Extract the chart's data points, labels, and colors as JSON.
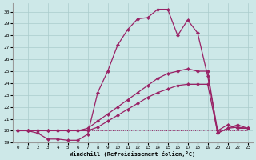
{
  "xlabel": "Windchill (Refroidissement éolien,°C)",
  "bg_color": "#cde8e8",
  "line_color": "#992266",
  "grid_color": "#aacccc",
  "xlim": [
    -0.5,
    23.5
  ],
  "ylim": [
    19.0,
    30.7
  ],
  "yticks": [
    19,
    20,
    21,
    22,
    23,
    24,
    25,
    26,
    27,
    28,
    29,
    30
  ],
  "xticks": [
    0,
    1,
    2,
    3,
    4,
    5,
    6,
    7,
    8,
    9,
    10,
    11,
    12,
    13,
    14,
    15,
    16,
    17,
    18,
    19,
    20,
    21,
    22,
    23
  ],
  "lines": [
    {
      "x": [
        0,
        1,
        2,
        3,
        4,
        5,
        6,
        7,
        8,
        9,
        10,
        11,
        12,
        13,
        14,
        15,
        16,
        17,
        18,
        19,
        20,
        21,
        22,
        23
      ],
      "y": [
        20.0,
        20.0,
        19.8,
        19.3,
        19.3,
        19.2,
        19.2,
        19.7,
        23.2,
        25.0,
        27.2,
        28.5,
        29.4,
        29.5,
        30.2,
        30.2,
        28.0,
        29.3,
        28.2,
        24.6,
        20.0,
        20.5,
        20.2,
        20.2
      ],
      "linestyle": "-",
      "marker": true,
      "linewidth": 0.9
    },
    {
      "x": [
        0,
        1,
        2,
        3,
        4,
        5,
        6,
        7,
        8,
        9,
        10,
        11,
        12,
        13,
        14,
        15,
        16,
        17,
        18,
        19,
        20,
        21,
        22,
        23
      ],
      "y": [
        20.0,
        20.0,
        20.0,
        20.0,
        20.0,
        20.0,
        20.0,
        20.2,
        20.8,
        21.4,
        22.0,
        22.6,
        23.2,
        23.8,
        24.4,
        24.8,
        25.0,
        25.2,
        25.0,
        25.0,
        19.8,
        20.2,
        20.5,
        20.2
      ],
      "linestyle": "-",
      "marker": true,
      "linewidth": 0.9
    },
    {
      "x": [
        0,
        1,
        2,
        3,
        4,
        5,
        6,
        7,
        8,
        9,
        10,
        11,
        12,
        13,
        14,
        15,
        16,
        17,
        18,
        19,
        20,
        21,
        22,
        23
      ],
      "y": [
        20.0,
        20.0,
        20.0,
        20.0,
        20.0,
        20.0,
        20.0,
        20.0,
        20.3,
        20.8,
        21.3,
        21.8,
        22.3,
        22.8,
        23.2,
        23.5,
        23.8,
        23.9,
        23.9,
        23.9,
        19.8,
        20.2,
        20.3,
        20.2
      ],
      "linestyle": "-",
      "marker": true,
      "linewidth": 0.9
    },
    {
      "x": [
        0,
        1,
        2,
        3,
        4,
        5,
        6,
        7,
        8,
        9,
        10,
        11,
        12,
        13,
        14,
        15,
        16,
        17,
        18,
        19,
        20,
        21,
        22,
        23
      ],
      "y": [
        20.0,
        20.0,
        20.0,
        20.0,
        20.0,
        20.0,
        20.0,
        20.0,
        20.0,
        20.0,
        20.0,
        20.0,
        20.0,
        20.0,
        20.0,
        20.0,
        20.0,
        20.0,
        20.0,
        20.0,
        20.0,
        20.0,
        20.0,
        20.0
      ],
      "linestyle": "dotted",
      "marker": false,
      "linewidth": 0.7
    }
  ]
}
